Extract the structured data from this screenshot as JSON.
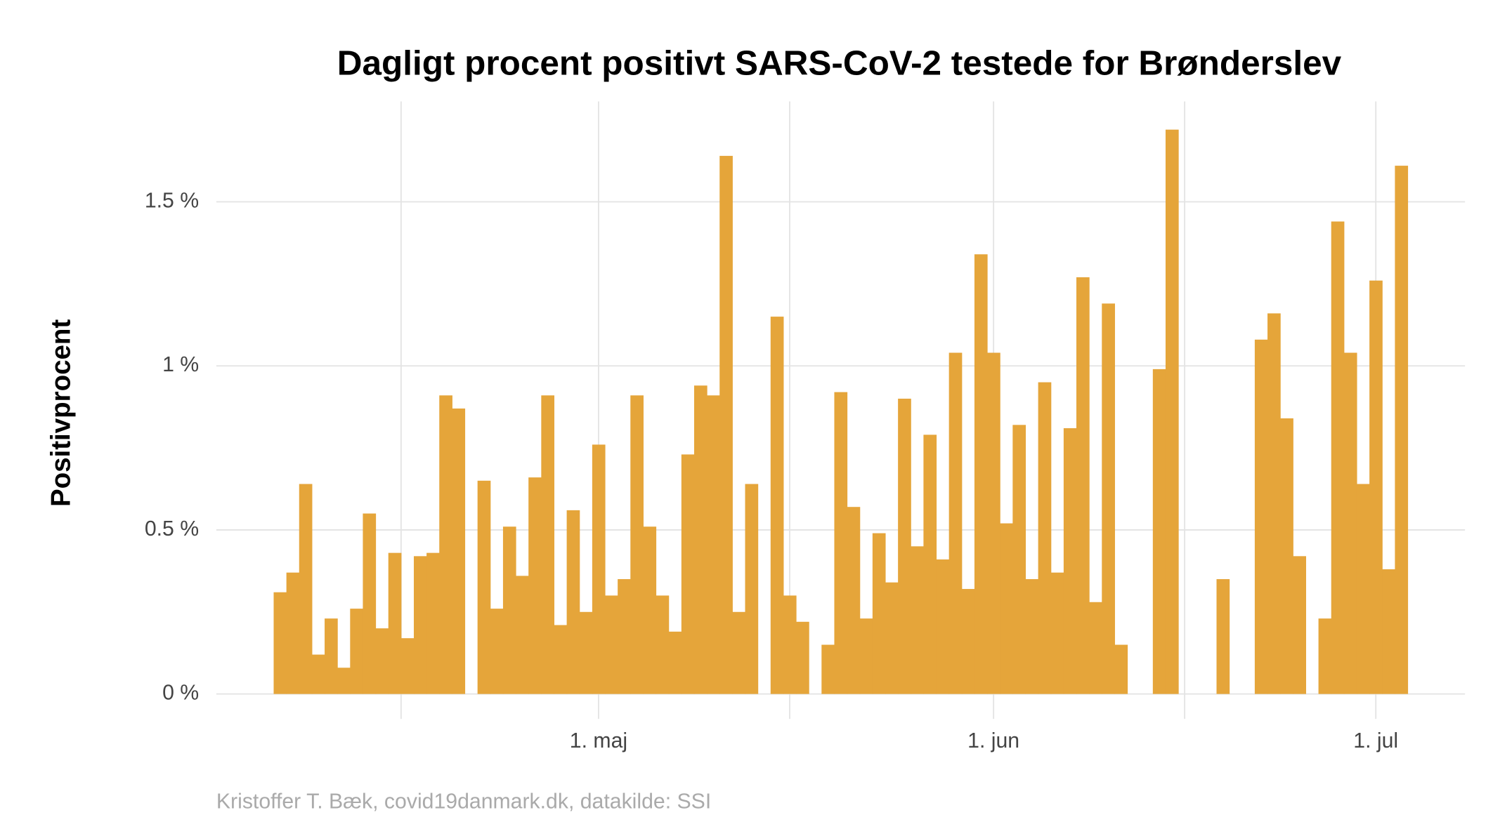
{
  "chart_data": {
    "type": "bar",
    "title": "Dagligt procent positivt SARS-CoV-2 testede for Brønderslev",
    "y_label": "Positivprocent",
    "caption": "Kristoffer T. Bæk, covid19danmark.dk, datakilde: SSI",
    "color": "#e5a53a",
    "x": [
      96,
      97,
      98,
      99,
      100,
      101,
      102,
      103,
      104,
      105,
      106,
      107,
      108,
      109,
      110,
      111,
      112,
      113,
      114,
      115,
      116,
      117,
      118,
      119,
      120,
      121,
      122,
      123,
      124,
      125,
      126,
      127,
      128,
      129,
      130,
      131,
      132,
      133,
      134,
      135,
      136,
      137,
      138,
      139,
      140,
      141,
      142,
      143,
      144,
      145,
      146,
      147,
      148,
      149,
      150,
      151,
      152,
      153,
      154,
      155,
      156,
      157,
      158,
      159,
      160,
      161,
      162,
      163,
      164,
      165,
      166,
      167,
      168,
      169,
      170,
      171,
      172,
      173,
      174,
      175,
      176,
      177,
      178,
      179,
      180,
      181,
      182,
      183,
      184
    ],
    "values": [
      0.31,
      0.37,
      0.64,
      0.12,
      0.23,
      0.08,
      0.26,
      0.55,
      0.2,
      0.43,
      0.17,
      0.42,
      0.43,
      0.91,
      0.87,
      0,
      0.65,
      0.26,
      0.51,
      0.36,
      0.66,
      0.91,
      0.21,
      0.56,
      0.25,
      0.76,
      0.3,
      0.35,
      0.91,
      0.51,
      0.3,
      0.19,
      0.73,
      0.94,
      0.91,
      1.64,
      0.25,
      0.64,
      0,
      1.15,
      0.3,
      0.22,
      0,
      0.15,
      0.92,
      0.57,
      0.23,
      0.49,
      0.34,
      0.9,
      0.45,
      0.79,
      0.41,
      1.04,
      0.32,
      1.34,
      1.04,
      0.52,
      0.82,
      0.35,
      0.95,
      0.37,
      0.81,
      1.27,
      0.28,
      1.19,
      0.15,
      0,
      0,
      0.99,
      1.72,
      0,
      0,
      0,
      0.35,
      0,
      0,
      1.08,
      1.16,
      0.84,
      0.42,
      0,
      0.23,
      1.44,
      1.04,
      0.64,
      1.26,
      0.38,
      1.61
    ],
    "xlim": [
      91,
      189
    ],
    "xticks": [
      {
        "value": 121,
        "label": "1. maj"
      },
      {
        "value": 152,
        "label": "1. jun"
      },
      {
        "value": 182,
        "label": "1. jul"
      }
    ],
    "xminor": [
      105.5,
      136,
      167
    ],
    "ylim": [
      -0.076,
      1.806
    ],
    "yticks": [
      {
        "value": 0,
        "label": "0 %"
      },
      {
        "value": 0.5,
        "label": "0.5 %"
      },
      {
        "value": 1,
        "label": "1 %"
      },
      {
        "value": 1.5,
        "label": "1.5 %"
      }
    ],
    "grid": true
  }
}
